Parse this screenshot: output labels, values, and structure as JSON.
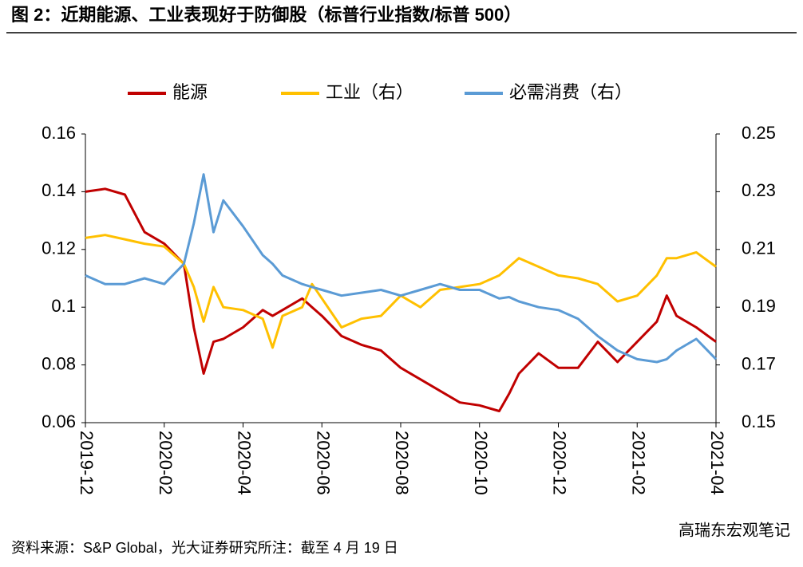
{
  "chart_data": {
    "type": "line",
    "title": "图 2：近期能源、工业表现好于防御股（标普行业指数/标普 500）",
    "x": [
      0,
      0.5,
      1,
      1.5,
      2,
      2.5,
      2.75,
      3,
      3.25,
      3.5,
      4,
      4.5,
      4.75,
      5,
      5.5,
      5.75,
      6,
      6.5,
      7,
      7.5,
      8,
      8.5,
      9,
      9.5,
      10,
      10.5,
      10.75,
      11,
      11.5,
      12,
      12.5,
      13,
      13.5,
      14,
      14.5,
      14.75,
      15,
      15.5,
      16
    ],
    "xlim": [
      0,
      16
    ],
    "xticks": [
      {
        "value": 0,
        "label": "2019-12"
      },
      {
        "value": 2,
        "label": "2020-02"
      },
      {
        "value": 4,
        "label": "2020-04"
      },
      {
        "value": 6,
        "label": "2020-06"
      },
      {
        "value": 8,
        "label": "2020-08"
      },
      {
        "value": 10,
        "label": "2020-10"
      },
      {
        "value": 12,
        "label": "2020-12"
      },
      {
        "value": 14,
        "label": "2021-02"
      },
      {
        "value": 16,
        "label": "2021-04"
      }
    ],
    "ylim": [
      0.06,
      0.16
    ],
    "yticks": [
      0.06,
      0.08,
      0.1,
      0.12,
      0.14,
      0.16
    ],
    "y2lim": [
      0.15,
      0.25
    ],
    "y2ticks": [
      0.15,
      0.17,
      0.19,
      0.21,
      0.23,
      0.25
    ],
    "legend": "top",
    "series": [
      {
        "name": "能源",
        "color": "#c00000",
        "values": [
          0.14,
          0.141,
          0.139,
          0.126,
          0.122,
          0.115,
          0.093,
          0.077,
          0.088,
          0.089,
          0.093,
          0.099,
          0.097,
          0.099,
          0.103,
          0.1,
          0.097,
          0.09,
          0.087,
          0.085,
          0.079,
          0.075,
          0.071,
          0.067,
          0.066,
          0.064,
          0.07,
          0.077,
          0.084,
          0.079,
          0.079,
          0.088,
          0.081,
          0.088,
          0.095,
          0.104,
          0.097,
          0.093,
          0.088
        ]
      },
      {
        "name": "工业（右）",
        "color": "#ffc000",
        "axis": "y2",
        "values": [
          0.214,
          0.215,
          0.2135,
          0.212,
          0.211,
          0.205,
          0.197,
          0.185,
          0.197,
          0.19,
          0.189,
          0.186,
          0.176,
          0.187,
          0.19,
          0.198,
          0.193,
          0.183,
          0.186,
          0.187,
          0.194,
          0.19,
          0.196,
          0.197,
          0.198,
          0.201,
          0.204,
          0.207,
          0.204,
          0.201,
          0.2,
          0.198,
          0.192,
          0.194,
          0.201,
          0.207,
          0.207,
          0.209,
          0.204
        ]
      },
      {
        "name": "必需消费（右）",
        "color": "#5b9bd5",
        "axis": "y2",
        "values": [
          0.201,
          0.198,
          0.198,
          0.2,
          0.198,
          0.205,
          0.219,
          0.236,
          0.216,
          0.227,
          0.218,
          0.208,
          0.205,
          0.201,
          0.198,
          0.197,
          0.196,
          0.194,
          0.195,
          0.196,
          0.194,
          0.196,
          0.198,
          0.196,
          0.196,
          0.193,
          0.1935,
          0.192,
          0.19,
          0.189,
          0.186,
          0.18,
          0.175,
          0.172,
          0.171,
          0.172,
          0.175,
          0.179,
          0.172
        ]
      }
    ]
  },
  "source": "资料来源：S&P Global，光大证券研究所注：截至 4 月 19 日",
  "watermark": "高瑞东宏观笔记"
}
